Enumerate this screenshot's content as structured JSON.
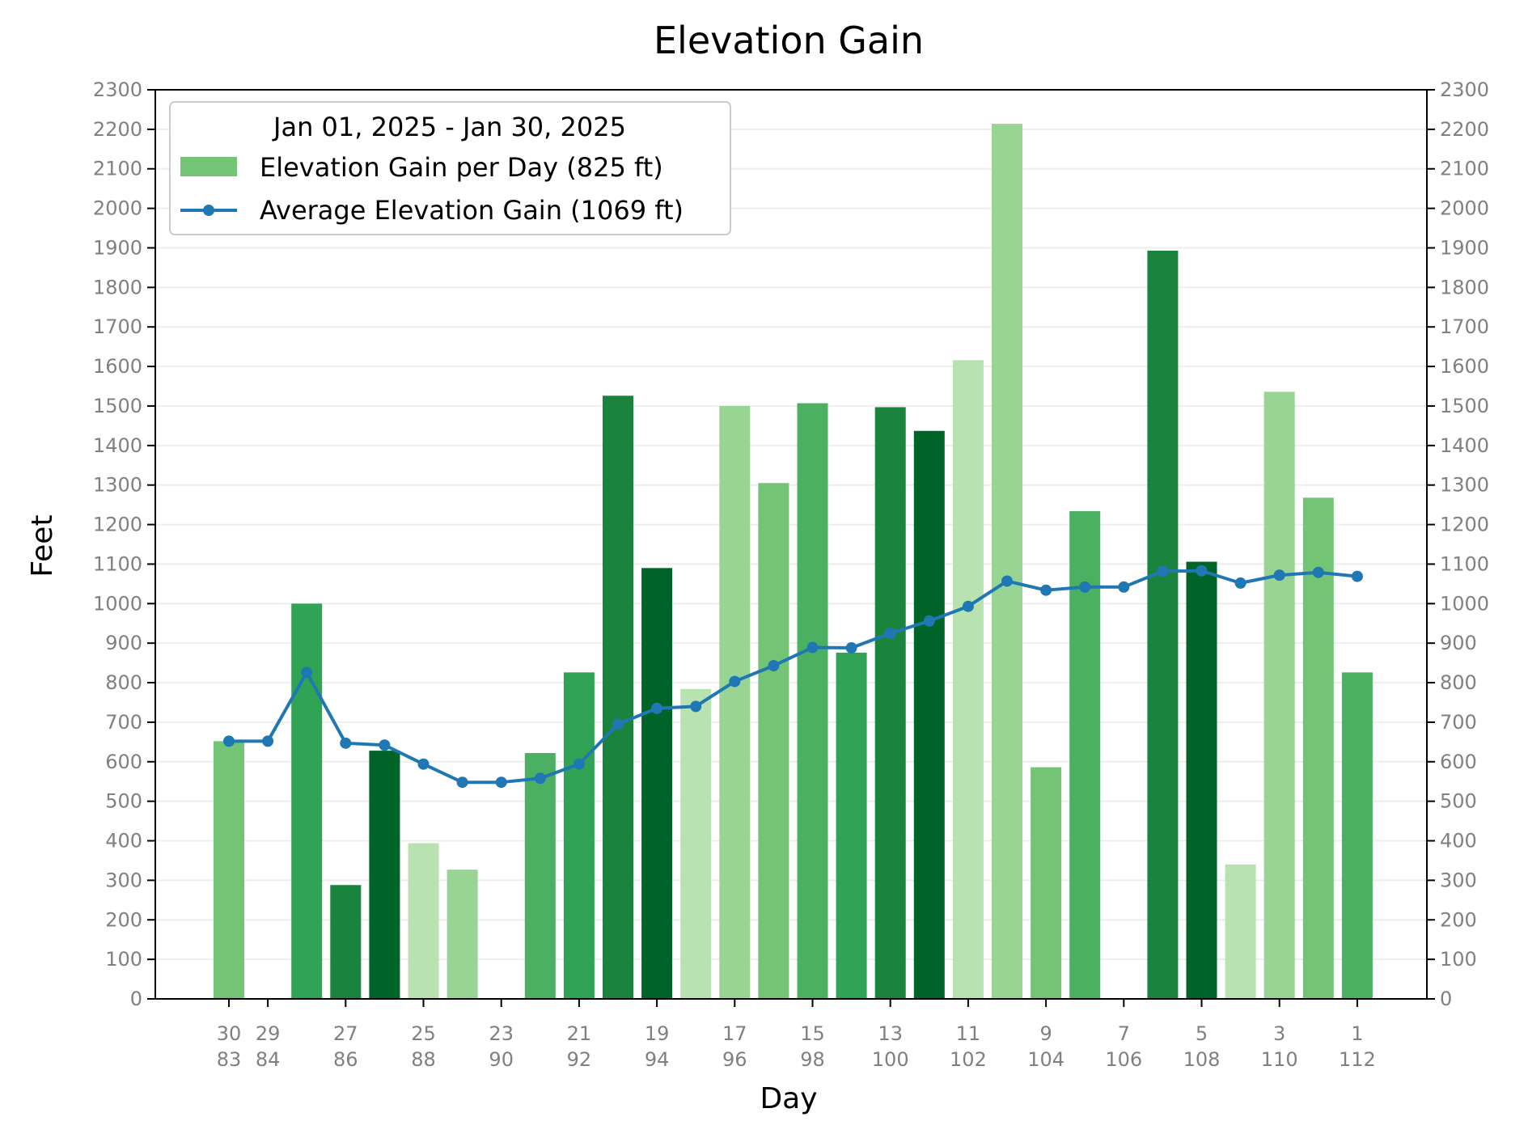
{
  "chart_data": {
    "type": "bar",
    "title": "Elevation Gain",
    "xlabel": "Day",
    "ylabel": "Feet",
    "ylim": [
      0,
      2300
    ],
    "y_ticks": [
      0,
      100,
      200,
      300,
      400,
      500,
      600,
      700,
      800,
      900,
      1000,
      1100,
      1200,
      1300,
      1400,
      1500,
      1600,
      1700,
      1800,
      1900,
      2000,
      2100,
      2200,
      2300
    ],
    "y_tick_labels_right": true,
    "grid": "horizontal",
    "legend": {
      "placement": "top-left",
      "title": "Jan 01, 2025 - Jan 30, 2025",
      "bar_label": "Elevation Gain per Day (825 ft)",
      "line_label": "Average Elevation Gain (1069 ft)"
    },
    "x_tick_labels": [
      {
        "day": 30,
        "top": "30",
        "bottom": "83"
      },
      {
        "day": 29,
        "top": "29",
        "bottom": "84"
      },
      {
        "day": 27,
        "top": "27",
        "bottom": "86"
      },
      {
        "day": 25,
        "top": "25",
        "bottom": "88"
      },
      {
        "day": 23,
        "top": "23",
        "bottom": "90"
      },
      {
        "day": 21,
        "top": "21",
        "bottom": "92"
      },
      {
        "day": 19,
        "top": "19",
        "bottom": "94"
      },
      {
        "day": 17,
        "top": "17",
        "bottom": "96"
      },
      {
        "day": 15,
        "top": "15",
        "bottom": "98"
      },
      {
        "day": 13,
        "top": "13",
        "bottom": "100"
      },
      {
        "day": 11,
        "top": "11",
        "bottom": "102"
      },
      {
        "day": 9,
        "top": "9",
        "bottom": "104"
      },
      {
        "day": 7,
        "top": "7",
        "bottom": "106"
      },
      {
        "day": 5,
        "top": "5",
        "bottom": "108"
      },
      {
        "day": 3,
        "top": "3",
        "bottom": "110"
      },
      {
        "day": 1,
        "top": "1",
        "bottom": "112"
      }
    ],
    "days": [
      30,
      29,
      28,
      27,
      26,
      25,
      24,
      23,
      22,
      21,
      20,
      19,
      18,
      17,
      16,
      15,
      14,
      13,
      12,
      11,
      10,
      9,
      8,
      7,
      6,
      5,
      4,
      3,
      2,
      1
    ],
    "series": [
      {
        "name": "Elevation Gain per Day (825 ft)",
        "type": "bar",
        "values": [
          652,
          0,
          1000,
          288,
          628,
          394,
          327,
          0,
          622,
          826,
          1526,
          1090,
          784,
          1500,
          1305,
          1507,
          876,
          1497,
          1437,
          1616,
          2214,
          586,
          1234,
          0,
          1893,
          1106,
          340,
          1536,
          1268,
          826
        ],
        "colors": [
          "#74c476",
          "#74c476",
          "#31a354",
          "#1a843f",
          "#006428",
          "#b8e3b1",
          "#98d594",
          "#98d594",
          "#4bb062",
          "#31a354",
          "#1a843f",
          "#006428",
          "#b8e3b1",
          "#98d594",
          "#74c476",
          "#4bb062",
          "#31a354",
          "#1a843f",
          "#006428",
          "#b8e3b1",
          "#98d594",
          "#74c476",
          "#4bb062",
          "#4bb062",
          "#1a843f",
          "#006428",
          "#b8e3b1",
          "#98d594",
          "#74c476",
          "#4bb062"
        ]
      },
      {
        "name": "Average Elevation Gain (1069 ft)",
        "type": "line",
        "color": "#1f77b4",
        "values": [
          652,
          652,
          826,
          647,
          642,
          594,
          548,
          548,
          558,
          594,
          695,
          735,
          740,
          803,
          843,
          889,
          888,
          925,
          956,
          993,
          1057,
          1034,
          1042,
          1042,
          1082,
          1083,
          1052,
          1072,
          1079,
          1069
        ]
      }
    ]
  }
}
